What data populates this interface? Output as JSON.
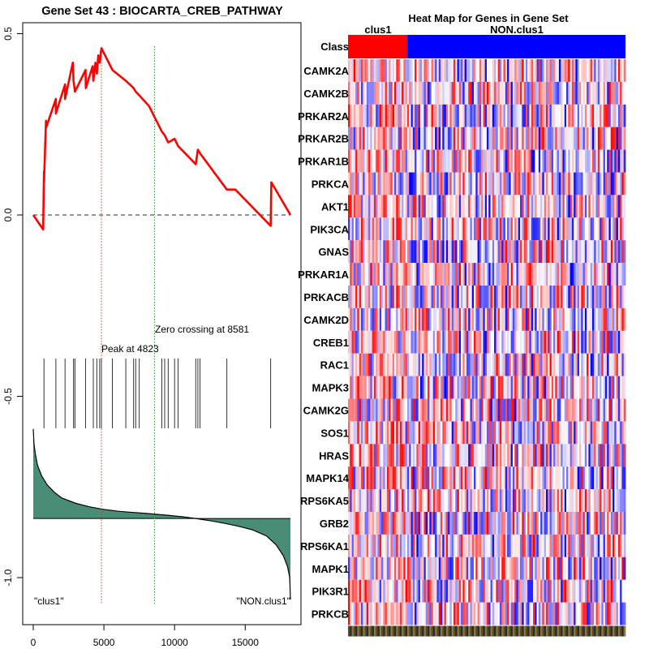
{
  "chart_data": [
    {
      "type": "line",
      "title": "Gene Set  43 : BIOCARTA_CREB_PATHWAY",
      "xlim": [
        0,
        18500
      ],
      "ylim": [
        -1.15,
        0.55
      ],
      "xticks": [
        "0",
        "5000",
        "10000",
        "15000"
      ],
      "xtick_values": [
        0,
        5000,
        10000,
        15000
      ],
      "yticks": [
        "0.5",
        "0.0",
        "-0.5",
        "-1.0"
      ],
      "ytick_values": [
        0.5,
        0.0,
        -0.5,
        -1.0
      ],
      "hit_positions": [
        760,
        1600,
        2250,
        2850,
        2950,
        3700,
        4250,
        4500,
        4700,
        4823,
        5600,
        6550,
        7100,
        7250,
        7500,
        9100,
        9300,
        9550,
        10000,
        10250,
        11500,
        11650,
        11800,
        13700,
        16800
      ],
      "running_es": {
        "x": [
          0,
          700,
          760,
          760,
          900,
          900,
          1600,
          1600,
          2250,
          2250,
          2800,
          2850,
          2950,
          3700,
          3720,
          4200,
          4250,
          4400,
          4500,
          4600,
          4700,
          4823,
          5600,
          6550,
          7100,
          7250,
          7500,
          8200,
          8581,
          9100,
          9300,
          9550,
          10000,
          10250,
          11500,
          11650,
          11800,
          13700,
          14300,
          16800,
          16850,
          18200
        ],
        "y": [
          0.0,
          -0.04,
          0.12,
          0.09,
          0.26,
          0.24,
          0.32,
          0.28,
          0.36,
          0.32,
          0.42,
          0.37,
          0.34,
          0.4,
          0.35,
          0.41,
          0.37,
          0.42,
          0.39,
          0.44,
          0.42,
          0.46,
          0.4,
          0.37,
          0.35,
          0.34,
          0.33,
          0.3,
          0.27,
          0.23,
          0.22,
          0.2,
          0.21,
          0.19,
          0.14,
          0.18,
          0.17,
          0.07,
          0.07,
          -0.03,
          0.09,
          0.0
        ]
      },
      "baseline": 0.0,
      "peak": {
        "x": 4823,
        "label": "Peak at 4823"
      },
      "zero_crossing": {
        "x": 8581,
        "label": "Zero crossing at 8581"
      },
      "ranked_metric": {
        "x": [
          0,
          50,
          150,
          300,
          600,
          1000,
          1500,
          2000,
          3000,
          4000,
          5000,
          6000,
          7000,
          8000,
          8581,
          9500,
          10500,
          11500,
          12500,
          13500,
          14500,
          15500,
          16500,
          17200,
          17700,
          18000,
          18150,
          18200
        ],
        "y": [
          -0.59,
          -0.63,
          -0.66,
          -0.69,
          -0.72,
          -0.745,
          -0.765,
          -0.78,
          -0.795,
          -0.805,
          -0.812,
          -0.817,
          -0.82,
          -0.823,
          -0.825,
          -0.828,
          -0.832,
          -0.837,
          -0.843,
          -0.85,
          -0.858,
          -0.868,
          -0.885,
          -0.91,
          -0.94,
          -0.97,
          -1.0,
          -1.06
        ]
      },
      "left_label": "\"clus1\"",
      "right_label": "\"NON.clus1\""
    },
    {
      "type": "heatmap",
      "title": "Heat Map for Genes in Gene Set",
      "class_label": "Class",
      "class_groups": [
        "clus1",
        "NON.clus1"
      ],
      "class_colors": [
        "#ff0000",
        "#0000ff"
      ],
      "class_split_fraction": 0.214,
      "genes": [
        "CAMK2A",
        "CAMK2B",
        "PRKAR2A",
        "PRKAR2B",
        "PRKAR1B",
        "PRKCA",
        "AKT1",
        "PIK3CA",
        "GNAS",
        "PRKAR1A",
        "PRKACB",
        "CAMK2D",
        "CREB1",
        "RAC1",
        "MAPK3",
        "CAMK2G",
        "SOS1",
        "HRAS",
        "MAPK14",
        "RPS6KA5",
        "GRB2",
        "RPS6KA1",
        "MAPK1",
        "PIK3R1",
        "PRKCB"
      ],
      "color_low": "#0000ff",
      "color_mid": "#ffffff",
      "color_high": "#ff0000"
    }
  ]
}
